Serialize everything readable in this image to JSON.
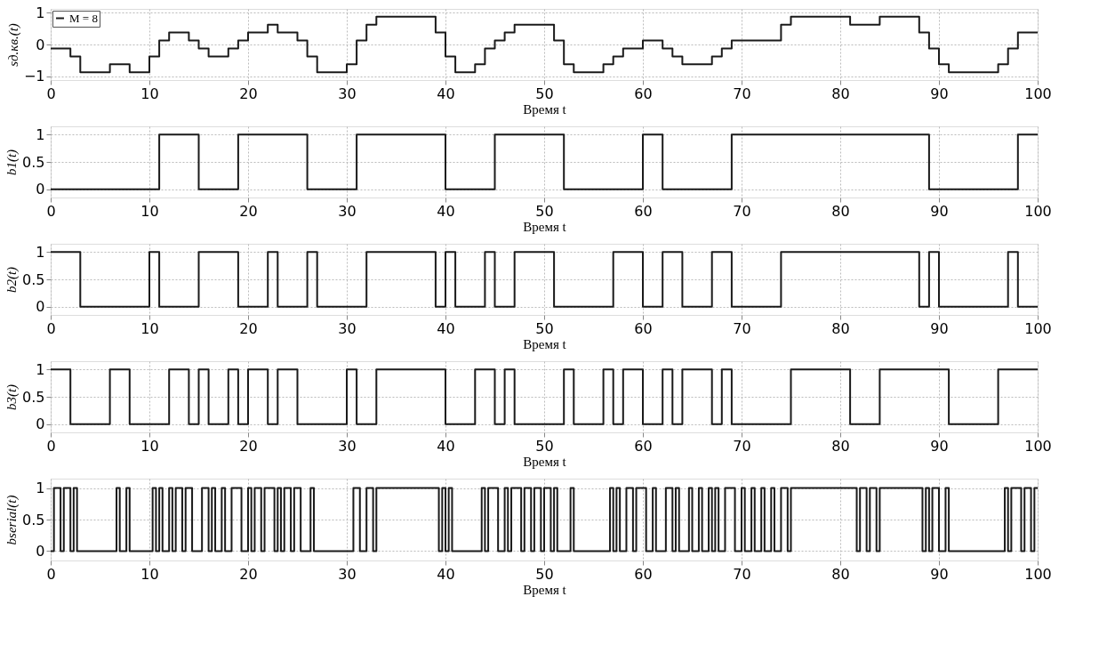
{
  "chart_data": [
    {
      "type": "step",
      "xlabel": "Время  t",
      "ylabel": "sд.кв.(t)",
      "xlim": [
        0,
        100
      ],
      "xticks": [
        0,
        10,
        20,
        30,
        40,
        50,
        60,
        70,
        80,
        90,
        100
      ],
      "ylim": [
        -1.12,
        1.12
      ],
      "yticks": [
        -1,
        0,
        1
      ],
      "grid": true,
      "legend": "top left",
      "series": [
        {
          "name": "M = 8",
          "color": "#1a1a1a",
          "x": [
            0,
            2,
            3,
            6,
            8,
            10,
            11,
            12,
            14,
            15,
            16,
            18,
            19,
            20,
            22,
            23,
            25,
            26,
            27,
            30,
            31,
            32,
            33,
            39,
            40,
            41,
            43,
            44,
            45,
            46,
            47,
            51,
            52,
            53,
            56,
            57,
            58,
            60,
            62,
            63,
            64,
            67,
            68,
            69,
            74,
            75,
            81,
            84,
            88,
            89,
            90,
            91,
            96,
            97,
            98,
            100
          ],
          "values": [
            -0.125,
            -0.375,
            -0.875,
            -0.625,
            -0.875,
            -0.375,
            0.125,
            0.375,
            0.125,
            -0.125,
            -0.375,
            -0.125,
            0.125,
            0.375,
            0.625,
            0.375,
            0.125,
            -0.375,
            -0.875,
            -0.625,
            0.125,
            0.625,
            0.875,
            0.375,
            -0.375,
            -0.875,
            -0.625,
            -0.125,
            0.125,
            0.375,
            0.625,
            0.125,
            -0.625,
            -0.875,
            -0.625,
            -0.375,
            -0.125,
            0.125,
            -0.125,
            -0.375,
            -0.625,
            -0.375,
            -0.125,
            0.125,
            0.625,
            0.875,
            0.625,
            0.875,
            0.375,
            -0.125,
            -0.625,
            -0.875,
            -0.625,
            -0.125,
            0.375,
            0.375
          ]
        }
      ]
    },
    {
      "type": "step",
      "xlabel": "Время  t",
      "ylabel": "b1(t)",
      "xlim": [
        0,
        100
      ],
      "xticks": [
        0,
        10,
        20,
        30,
        40,
        50,
        60,
        70,
        80,
        90,
        100
      ],
      "ylim": [
        -0.15,
        1.15
      ],
      "yticks": [
        0,
        0.5,
        1
      ],
      "grid": true,
      "series": [
        {
          "color": "#1a1a1a",
          "x": [
            0,
            11,
            15,
            19,
            26,
            31,
            40,
            45,
            52,
            60,
            62,
            69,
            89,
            98,
            100
          ],
          "values": [
            0,
            1,
            0,
            1,
            0,
            1,
            0,
            1,
            0,
            1,
            0,
            1,
            0,
            1,
            1
          ]
        }
      ]
    },
    {
      "type": "step",
      "xlabel": "Время  t",
      "ylabel": "b2(t)",
      "xlim": [
        0,
        100
      ],
      "xticks": [
        0,
        10,
        20,
        30,
        40,
        50,
        60,
        70,
        80,
        90,
        100
      ],
      "ylim": [
        -0.15,
        1.15
      ],
      "yticks": [
        0,
        0.5,
        1
      ],
      "grid": true,
      "series": [
        {
          "color": "#1a1a1a",
          "x": [
            0,
            3,
            10,
            11,
            15,
            19,
            22,
            23,
            26,
            27,
            32,
            39,
            40,
            41,
            44,
            45,
            47,
            51,
            57,
            60,
            62,
            64,
            67,
            69,
            74,
            88,
            89,
            90,
            97,
            98,
            100
          ],
          "values": [
            1,
            0,
            1,
            0,
            1,
            0,
            1,
            0,
            1,
            0,
            1,
            0,
            1,
            0,
            1,
            0,
            1,
            0,
            1,
            0,
            1,
            0,
            1,
            0,
            1,
            0,
            1,
            0,
            1,
            0,
            0
          ]
        }
      ]
    },
    {
      "type": "step",
      "xlabel": "Время  t",
      "ylabel": "b3(t)",
      "xlim": [
        0,
        100
      ],
      "xticks": [
        0,
        10,
        20,
        30,
        40,
        50,
        60,
        70,
        80,
        90,
        100
      ],
      "ylim": [
        -0.15,
        1.15
      ],
      "yticks": [
        0,
        0.5,
        1
      ],
      "grid": true,
      "series": [
        {
          "color": "#1a1a1a",
          "x": [
            0,
            2,
            6,
            8,
            12,
            14,
            15,
            16,
            18,
            19,
            20,
            22,
            23,
            25,
            30,
            31,
            33,
            40,
            43,
            45,
            46,
            47,
            52,
            53,
            56,
            57,
            58,
            60,
            62,
            63,
            64,
            67,
            68,
            69,
            75,
            81,
            84,
            91,
            96,
            100
          ],
          "values": [
            1,
            0,
            1,
            0,
            1,
            0,
            1,
            0,
            1,
            0,
            1,
            0,
            1,
            0,
            1,
            0,
            1,
            0,
            1,
            0,
            1,
            0,
            1,
            0,
            1,
            0,
            1,
            0,
            1,
            0,
            1,
            0,
            1,
            0,
            1,
            0,
            1,
            0,
            1,
            1
          ]
        }
      ]
    },
    {
      "type": "step",
      "xlabel": "Время  t",
      "ylabel": "bserial(t)",
      "xlim": [
        0,
        100
      ],
      "xticks": [
        0,
        10,
        20,
        30,
        40,
        50,
        60,
        70,
        80,
        90,
        100
      ],
      "ylim": [
        -0.15,
        1.15
      ],
      "yticks": [
        0,
        0.5,
        1
      ],
      "grid": true,
      "series": [
        {
          "color": "#1a1a1a",
          "x": [
            0,
            0.33,
            1,
            1.33,
            2,
            2.33,
            2.67,
            6.67,
            7,
            7.67,
            8,
            10.33,
            10.67,
            11,
            11.33,
            12,
            12.33,
            12.67,
            13.33,
            13.67,
            14.33,
            15.33,
            16,
            16.33,
            16.67,
            17.33,
            17.67,
            18.33,
            19.33,
            20,
            20.33,
            20.67,
            21.33,
            21.67,
            22.67,
            23,
            23.33,
            23.67,
            24.33,
            24.67,
            25.33,
            26.33,
            26.67,
            30.67,
            31.33,
            32,
            32.67,
            33,
            39.33,
            39.67,
            40,
            40.33,
            40.67,
            43.67,
            44,
            44.33,
            45.33,
            46,
            46.33,
            46.67,
            47.67,
            48,
            48.67,
            49,
            49.67,
            50,
            50.67,
            51,
            51.33,
            52.67,
            53,
            56.67,
            57,
            57.33,
            57.67,
            58.33,
            59,
            59.33,
            60.33,
            61,
            61.33,
            62.33,
            63,
            63.33,
            63.67,
            64.67,
            65,
            65.67,
            66,
            66.67,
            67,
            67.33,
            67.67,
            68.33,
            69.33,
            70,
            70.33,
            71,
            71.33,
            72,
            72.33,
            73,
            73.33,
            74,
            74.67,
            75,
            81.67,
            82,
            82.67,
            83,
            83.67,
            84,
            88.33,
            88.67,
            89,
            89.33,
            90,
            90.67,
            91,
            96.67,
            97,
            97.33,
            98.33,
            98.67,
            99.33,
            99.67,
            100
          ],
          "values": [
            0,
            1,
            0,
            1,
            0,
            1,
            0,
            1,
            0,
            1,
            0,
            1,
            0,
            1,
            0,
            1,
            0,
            1,
            0,
            1,
            0,
            1,
            0,
            1,
            0,
            1,
            0,
            1,
            0,
            1,
            0,
            1,
            0,
            1,
            0,
            1,
            0,
            1,
            0,
            1,
            0,
            1,
            0,
            1,
            0,
            1,
            0,
            1,
            0,
            1,
            0,
            1,
            0,
            1,
            0,
            1,
            0,
            1,
            0,
            1,
            0,
            1,
            0,
            1,
            0,
            1,
            0,
            1,
            0,
            1,
            0,
            1,
            0,
            1,
            0,
            1,
            0,
            1,
            0,
            1,
            0,
            1,
            0,
            1,
            0,
            1,
            0,
            1,
            0,
            1,
            0,
            1,
            0,
            1,
            0,
            1,
            0,
            1,
            0,
            1,
            0,
            1,
            0,
            1,
            0,
            1,
            0,
            1,
            0,
            1,
            0,
            1,
            0,
            1,
            0,
            1,
            0,
            1,
            0,
            1,
            0,
            1,
            0,
            1,
            0,
            1,
            1
          ]
        }
      ]
    }
  ]
}
